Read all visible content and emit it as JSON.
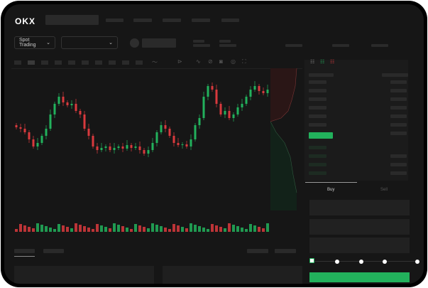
{
  "header": {
    "logo": "OKX"
  },
  "toolbar": {
    "market_select": "Spot Trading"
  },
  "trade": {
    "buy_tab": "Buy",
    "sell_tab": "Sell"
  },
  "colors": {
    "up": "#22b15c",
    "down": "#d9393d",
    "background": "#161616"
  },
  "icons": [
    "chevron-down-icon",
    "indicator-icon",
    "line-tool-icon",
    "ruler-icon",
    "camera-icon",
    "settings-icon",
    "fullscreen-icon",
    "orderbook-both-icon",
    "orderbook-buy-icon",
    "orderbook-sell-icon"
  ],
  "chart_data": {
    "type": "candlestick",
    "closes": [
      117,
      115,
      110,
      100,
      90,
      95,
      105,
      115,
      135,
      150,
      160,
      152,
      148,
      150,
      140,
      135,
      115,
      105,
      90,
      85,
      88,
      90,
      85,
      88,
      90,
      87,
      92,
      88,
      90,
      85,
      80,
      85,
      95,
      110,
      120,
      115,
      105,
      95,
      92,
      93,
      90,
      100,
      120,
      130,
      160,
      175,
      170,
      150,
      135,
      140,
      130,
      135,
      145,
      150,
      160,
      170,
      175,
      168,
      165,
      170
    ]
  },
  "slider": {
    "level": 0
  }
}
